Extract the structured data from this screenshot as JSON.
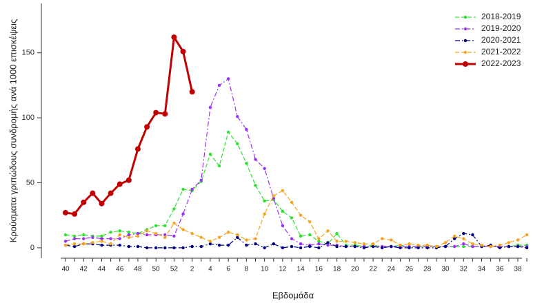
{
  "chart_data": {
    "type": "line",
    "y_label": "Κρούσματα γριπώδους συνδρομής ανά 1000 επισκέψεις",
    "x_label": "Εβδομάδα",
    "categories": [
      40,
      null,
      42,
      null,
      44,
      null,
      46,
      null,
      48,
      null,
      50,
      null,
      52,
      null,
      2,
      null,
      4,
      null,
      6,
      null,
      8,
      null,
      10,
      null,
      12,
      null,
      14,
      null,
      16,
      null,
      18,
      null,
      20,
      null,
      22,
      null,
      24,
      null,
      26,
      null,
      28,
      null,
      30,
      null,
      32,
      null,
      34,
      null,
      36,
      null,
      38,
      null
    ],
    "ylim": [
      -8,
      188
    ],
    "yticks": [
      0,
      50,
      100,
      150
    ],
    "grid": false,
    "legend": "top-right",
    "series": [
      {
        "name": "2018-2019",
        "color": "#2ee02e",
        "linestyle": "dashed",
        "values": [
          10,
          9,
          10,
          9,
          9,
          12,
          13,
          12,
          11,
          14,
          17,
          17,
          30,
          45,
          44,
          51,
          72,
          63,
          89,
          80,
          65,
          48,
          36,
          37,
          28,
          23,
          9,
          10,
          5,
          3,
          11,
          2,
          2,
          1,
          2,
          1,
          1,
          2,
          1,
          1,
          1,
          1,
          1,
          1,
          1,
          1,
          1,
          1,
          1,
          1,
          2,
          2
        ]
      },
      {
        "name": "2019-2020",
        "color": "#9b30f0",
        "linestyle": "dashdot",
        "values": [
          5,
          7,
          7,
          8,
          7,
          7,
          7,
          10,
          11,
          10,
          10,
          10,
          9,
          26,
          45,
          52,
          108,
          125,
          130,
          101,
          91,
          68,
          61,
          38,
          17,
          7,
          3,
          2,
          3,
          2,
          2,
          1,
          1,
          1,
          1,
          1,
          1,
          1,
          1,
          1,
          1,
          1,
          1,
          1,
          3,
          1,
          1,
          1,
          1,
          1,
          1,
          1
        ]
      },
      {
        "name": "2020-2021",
        "color": "#000080",
        "linestyle": "dashdot",
        "values": [
          2,
          1,
          3,
          3,
          2,
          2,
          2,
          1,
          1,
          0,
          0,
          0,
          0,
          0,
          1,
          1,
          3,
          2,
          2,
          8,
          2,
          3,
          0,
          3,
          0,
          1,
          0,
          1,
          0,
          4,
          1,
          1,
          1,
          0,
          1,
          0,
          1,
          0,
          0,
          0,
          0,
          0,
          1,
          7,
          11,
          10,
          1,
          2,
          0,
          1,
          1,
          0
        ]
      },
      {
        "name": "2021-2022",
        "color": "#f5a21e",
        "linestyle": "dashed",
        "values": [
          2,
          3,
          3,
          4,
          5,
          3,
          10,
          8,
          9,
          13,
          11,
          8,
          19,
          14,
          11,
          8,
          5,
          8,
          12,
          10,
          6,
          7,
          26,
          40,
          44,
          35,
          25,
          20,
          7,
          13,
          5,
          5,
          4,
          3,
          3,
          7,
          6,
          2,
          3,
          2,
          2,
          1,
          4,
          9,
          7,
          3,
          2,
          1,
          2,
          4,
          6,
          10
        ]
      },
      {
        "name": "2022-2023",
        "color": "#c00000",
        "linestyle": "solid",
        "values": [
          27,
          26,
          35,
          42,
          34,
          42,
          49,
          52,
          76,
          93,
          104,
          103,
          162,
          151,
          120,
          null,
          null,
          null,
          null,
          null,
          null,
          null,
          null,
          null,
          null,
          null,
          null,
          null,
          null,
          null,
          null,
          null,
          null,
          null,
          null,
          null,
          null,
          null,
          null,
          null,
          null,
          null,
          null,
          null,
          null,
          null,
          null,
          null,
          null,
          null,
          null,
          null
        ]
      }
    ]
  }
}
